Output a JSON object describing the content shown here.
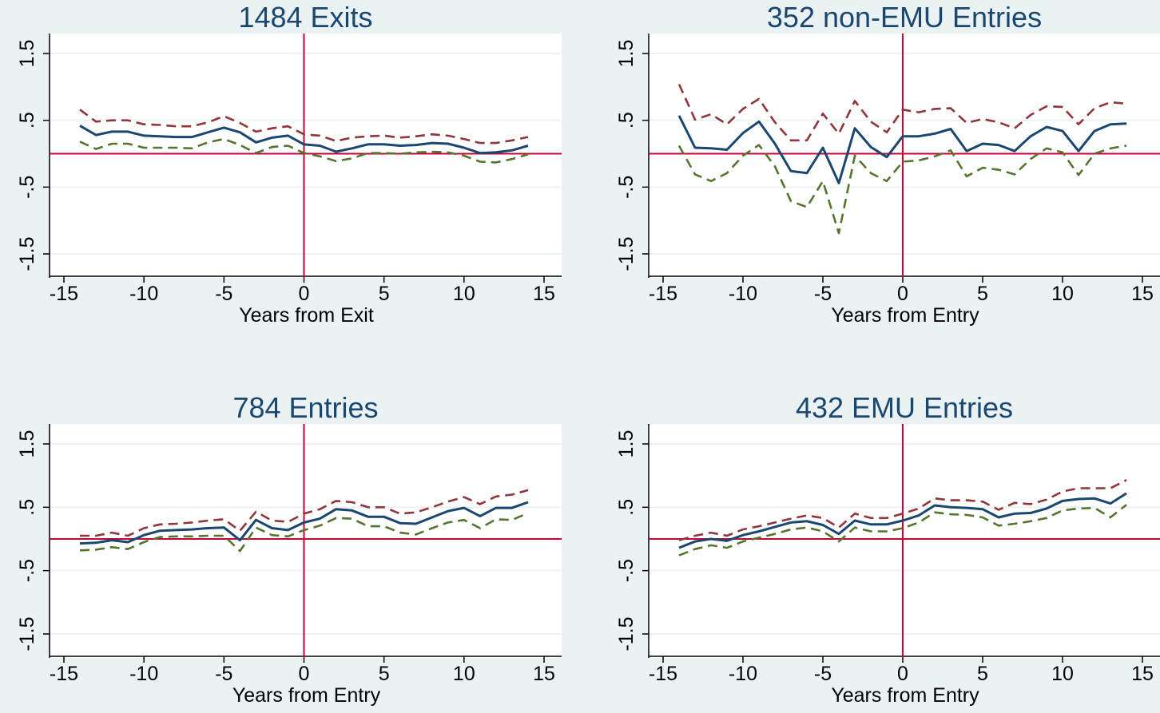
{
  "figure": {
    "background": "#eaf2f3",
    "plot_background": "#ffffff"
  },
  "colors": {
    "estimate": "#1a476f",
    "upper_band": "#90353b",
    "lower_band": "#55752f",
    "reference": "#c10534",
    "gridline": "#eaf2f3",
    "title": "#1a476f"
  },
  "chart_data": [
    {
      "type": "line",
      "title": "1484 Exits",
      "xlabel": "Years from Exit",
      "ylabel": "",
      "xlim": [
        -15,
        15
      ],
      "ylim": [
        -1.5,
        1.5
      ],
      "xticks": [
        -15,
        -10,
        -5,
        0,
        5,
        10,
        15
      ],
      "yticks": [
        -1.5,
        -0.5,
        0.5,
        1.5
      ],
      "ytick_labels": [
        "-1.5",
        "-.5",
        ".5",
        "1.5"
      ],
      "reference_lines": {
        "x": 0,
        "y": 0
      },
      "grid": true,
      "x": [
        -14,
        -13,
        -12,
        -11,
        -10,
        -9,
        -8,
        -7,
        -6,
        -5,
        -4,
        -3,
        -2,
        -1,
        0,
        1,
        2,
        3,
        4,
        5,
        6,
        7,
        8,
        9,
        10,
        11,
        12,
        13,
        14
      ],
      "series": [
        {
          "style": "upper",
          "values": [
            0.66,
            0.48,
            0.5,
            0.5,
            0.44,
            0.43,
            0.41,
            0.41,
            0.47,
            0.56,
            0.46,
            0.33,
            0.38,
            0.41,
            0.29,
            0.27,
            0.19,
            0.24,
            0.26,
            0.27,
            0.24,
            0.26,
            0.29,
            0.27,
            0.22,
            0.16,
            0.16,
            0.2,
            0.25
          ]
        },
        {
          "style": "estimate",
          "values": [
            0.42,
            0.28,
            0.33,
            0.33,
            0.27,
            0.26,
            0.25,
            0.25,
            0.32,
            0.39,
            0.32,
            0.17,
            0.24,
            0.27,
            0.14,
            0.12,
            0.03,
            0.08,
            0.14,
            0.14,
            0.12,
            0.13,
            0.16,
            0.15,
            0.09,
            0.01,
            0.02,
            0.05,
            0.12
          ]
        },
        {
          "style": "lower",
          "values": [
            0.18,
            0.07,
            0.15,
            0.15,
            0.09,
            0.09,
            0.09,
            0.08,
            0.17,
            0.22,
            0.13,
            0.01,
            0.1,
            0.12,
            0.01,
            -0.04,
            -0.11,
            -0.07,
            0.01,
            0.01,
            0.0,
            0.02,
            0.03,
            0.02,
            -0.03,
            -0.12,
            -0.13,
            -0.08,
            -0.01
          ]
        }
      ]
    },
    {
      "type": "line",
      "title": "352 non-EMU Entries",
      "xlabel": "Years from Entry",
      "ylabel": "",
      "xlim": [
        -15,
        15
      ],
      "ylim": [
        -1.5,
        1.5
      ],
      "xticks": [
        -15,
        -10,
        -5,
        0,
        5,
        10,
        15
      ],
      "yticks": [
        -1.5,
        -0.5,
        0.5,
        1.5
      ],
      "ytick_labels": [
        "-1.5",
        "-.5",
        ".5",
        "1.5"
      ],
      "reference_lines": {
        "x": 0,
        "y": 0
      },
      "grid": true,
      "x": [
        -14,
        -13,
        -12,
        -11,
        -10,
        -9,
        -8,
        -7,
        -6,
        -5,
        -4,
        -3,
        -2,
        -1,
        0,
        1,
        2,
        3,
        4,
        5,
        6,
        7,
        8,
        9,
        10,
        11,
        12,
        13,
        14
      ],
      "series": [
        {
          "style": "upper",
          "values": [
            1.04,
            0.51,
            0.59,
            0.44,
            0.67,
            0.82,
            0.47,
            0.2,
            0.2,
            0.6,
            0.3,
            0.79,
            0.48,
            0.32,
            0.66,
            0.62,
            0.67,
            0.68,
            0.46,
            0.52,
            0.47,
            0.38,
            0.58,
            0.71,
            0.7,
            0.44,
            0.68,
            0.77,
            0.75
          ]
        },
        {
          "style": "estimate",
          "values": [
            0.57,
            0.09,
            0.08,
            0.06,
            0.31,
            0.48,
            0.15,
            -0.26,
            -0.29,
            0.09,
            -0.44,
            0.38,
            0.1,
            -0.05,
            0.26,
            0.26,
            0.3,
            0.37,
            0.04,
            0.15,
            0.13,
            0.04,
            0.26,
            0.4,
            0.34,
            0.04,
            0.34,
            0.44,
            0.45
          ]
        },
        {
          "style": "lower",
          "values": [
            0.12,
            -0.31,
            -0.41,
            -0.29,
            -0.03,
            0.13,
            -0.19,
            -0.71,
            -0.8,
            -0.41,
            -1.19,
            -0.03,
            -0.29,
            -0.41,
            -0.12,
            -0.1,
            -0.04,
            0.05,
            -0.34,
            -0.21,
            -0.24,
            -0.31,
            -0.08,
            0.08,
            0.02,
            -0.32,
            0.0,
            0.08,
            0.12
          ]
        }
      ]
    },
    {
      "type": "line",
      "title": "784 Entries",
      "xlabel": "Years from Entry",
      "ylabel": "",
      "xlim": [
        -15,
        15
      ],
      "ylim": [
        -1.5,
        1.5
      ],
      "xticks": [
        -15,
        -10,
        -5,
        0,
        5,
        10,
        15
      ],
      "yticks": [
        -1.5,
        -0.5,
        0.5,
        1.5
      ],
      "ytick_labels": [
        "-1.5",
        "-.5",
        ".5",
        "1.5"
      ],
      "reference_lines": {
        "x": 0,
        "y": 0
      },
      "grid": true,
      "x": [
        -14,
        -13,
        -12,
        -11,
        -10,
        -9,
        -8,
        -7,
        -6,
        -5,
        -4,
        -3,
        -2,
        -1,
        0,
        1,
        2,
        3,
        4,
        5,
        6,
        7,
        8,
        9,
        10,
        11,
        12,
        13,
        14
      ],
      "series": [
        {
          "style": "upper",
          "values": [
            0.05,
            0.05,
            0.1,
            0.05,
            0.17,
            0.23,
            0.24,
            0.26,
            0.29,
            0.31,
            0.13,
            0.43,
            0.29,
            0.27,
            0.4,
            0.47,
            0.6,
            0.58,
            0.5,
            0.5,
            0.4,
            0.42,
            0.5,
            0.59,
            0.66,
            0.55,
            0.67,
            0.7,
            0.77
          ]
        },
        {
          "style": "estimate",
          "values": [
            -0.07,
            -0.06,
            -0.02,
            -0.05,
            0.06,
            0.13,
            0.14,
            0.15,
            0.17,
            0.18,
            -0.02,
            0.3,
            0.17,
            0.14,
            0.26,
            0.32,
            0.47,
            0.45,
            0.35,
            0.35,
            0.25,
            0.24,
            0.34,
            0.44,
            0.49,
            0.36,
            0.49,
            0.49,
            0.58
          ]
        },
        {
          "style": "lower",
          "values": [
            -0.18,
            -0.17,
            -0.13,
            -0.16,
            -0.05,
            0.03,
            0.04,
            0.04,
            0.05,
            0.05,
            -0.19,
            0.18,
            0.06,
            0.04,
            0.14,
            0.21,
            0.33,
            0.32,
            0.2,
            0.2,
            0.1,
            0.07,
            0.17,
            0.26,
            0.3,
            0.17,
            0.31,
            0.3,
            0.41
          ]
        }
      ]
    },
    {
      "type": "line",
      "title": "432 EMU Entries",
      "xlabel": "Years from Entry",
      "ylabel": "",
      "xlim": [
        -15,
        15
      ],
      "ylim": [
        -1.5,
        1.5
      ],
      "xticks": [
        -15,
        -10,
        -5,
        0,
        5,
        10,
        15
      ],
      "yticks": [
        -1.5,
        -0.5,
        0.5,
        1.5
      ],
      "ytick_labels": [
        "-1.5",
        "-.5",
        ".5",
        "1.5"
      ],
      "reference_lines": {
        "x": 0,
        "y": 0
      },
      "grid": true,
      "x": [
        -14,
        -13,
        -12,
        -11,
        -10,
        -9,
        -8,
        -7,
        -6,
        -5,
        -4,
        -3,
        -2,
        -1,
        0,
        1,
        2,
        3,
        4,
        5,
        6,
        7,
        8,
        9,
        10,
        11,
        12,
        13,
        14
      ],
      "series": [
        {
          "style": "upper",
          "values": [
            -0.02,
            0.05,
            0.1,
            0.05,
            0.15,
            0.2,
            0.26,
            0.32,
            0.37,
            0.33,
            0.18,
            0.4,
            0.33,
            0.33,
            0.4,
            0.48,
            0.64,
            0.61,
            0.61,
            0.59,
            0.46,
            0.57,
            0.55,
            0.62,
            0.75,
            0.8,
            0.8,
            0.8,
            0.93
          ]
        },
        {
          "style": "estimate",
          "values": [
            -0.14,
            -0.04,
            0.0,
            -0.03,
            0.06,
            0.12,
            0.19,
            0.26,
            0.28,
            0.22,
            0.08,
            0.29,
            0.23,
            0.23,
            0.29,
            0.37,
            0.53,
            0.5,
            0.49,
            0.47,
            0.34,
            0.4,
            0.41,
            0.48,
            0.6,
            0.63,
            0.64,
            0.56,
            0.72
          ]
        },
        {
          "style": "lower",
          "values": [
            -0.26,
            -0.16,
            -0.1,
            -0.14,
            -0.04,
            0.02,
            0.08,
            0.15,
            0.18,
            0.12,
            -0.04,
            0.18,
            0.12,
            0.12,
            0.17,
            0.26,
            0.42,
            0.39,
            0.38,
            0.34,
            0.21,
            0.24,
            0.28,
            0.33,
            0.45,
            0.48,
            0.49,
            0.34,
            0.54
          ]
        }
      ]
    }
  ]
}
